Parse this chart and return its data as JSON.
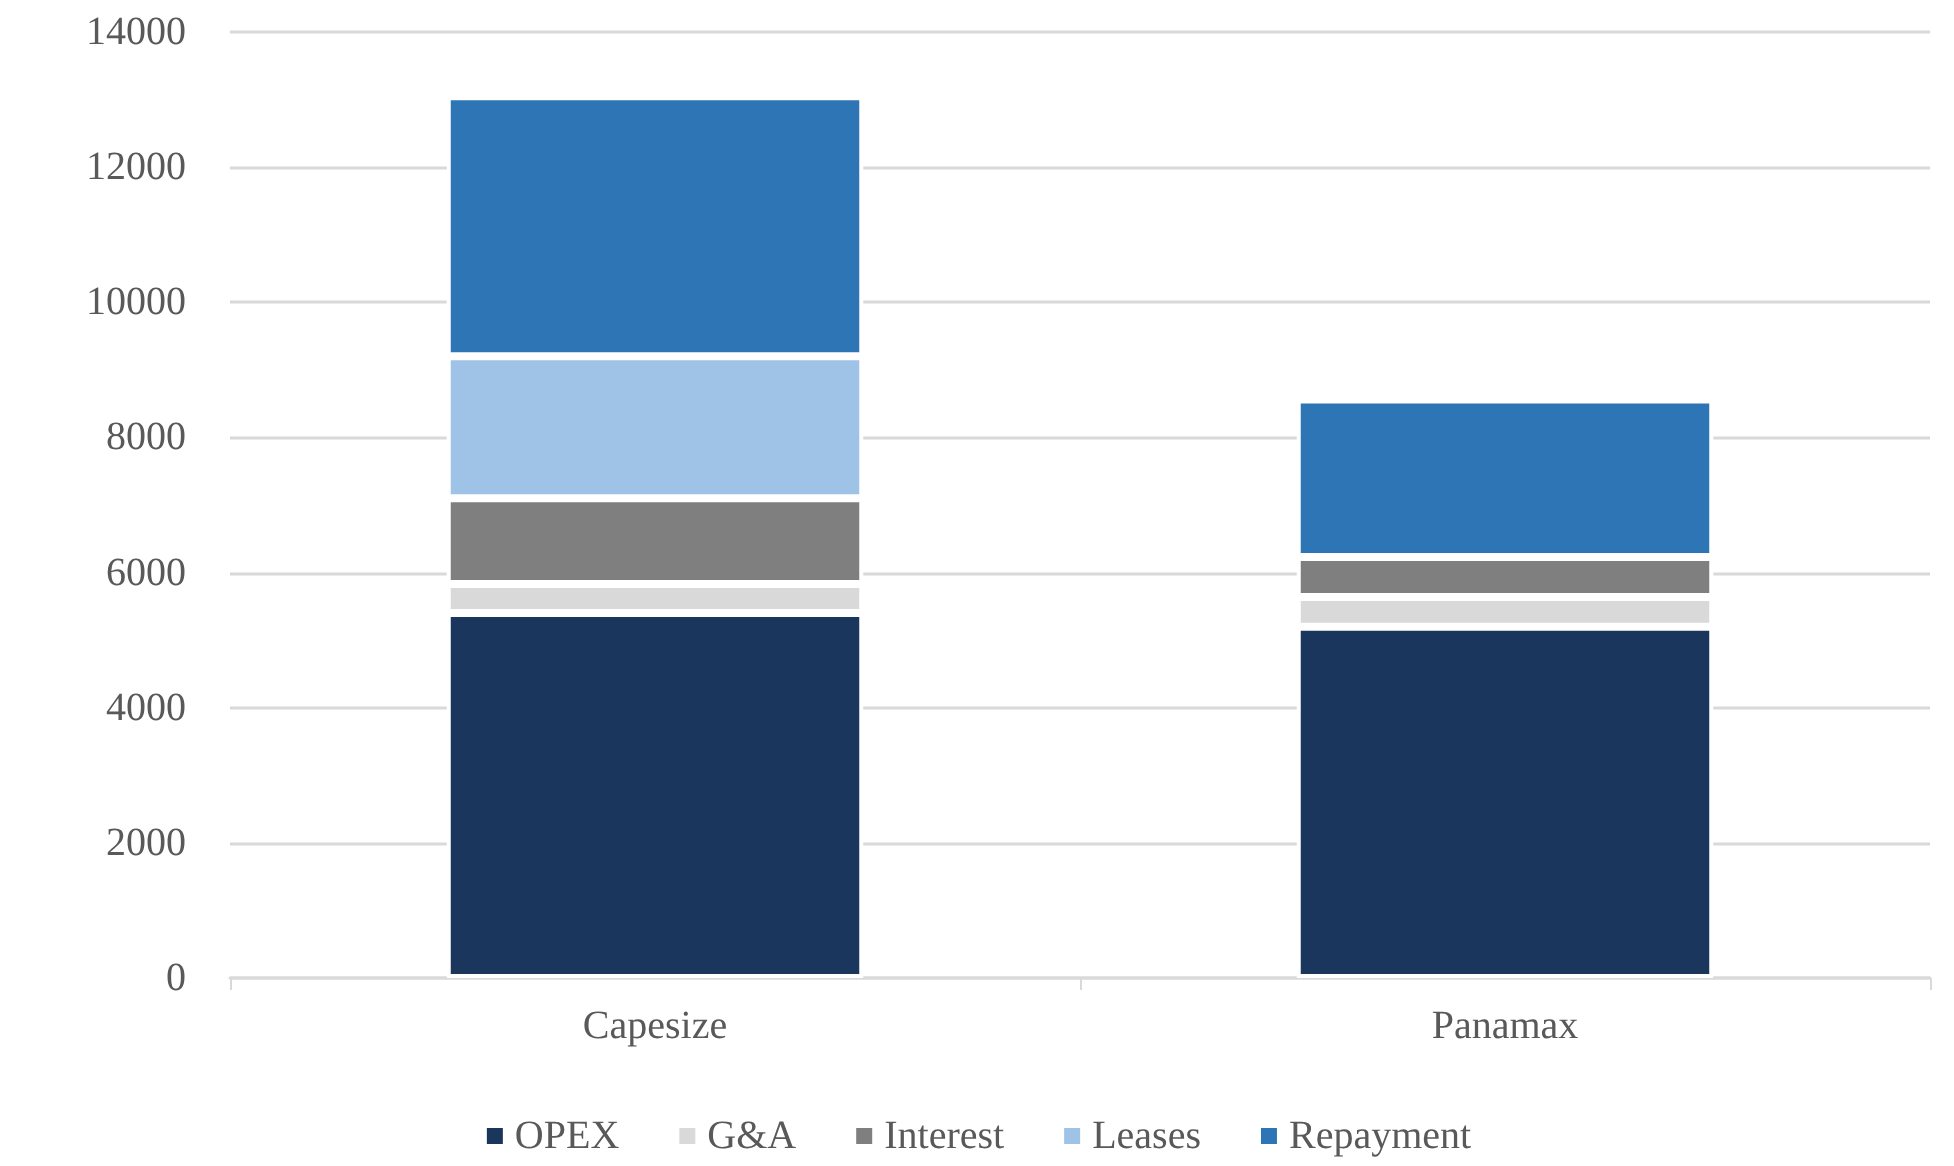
{
  "chart_data": {
    "type": "bar",
    "stacked": true,
    "categories": [
      "Capesize",
      "Panamax"
    ],
    "series": [
      {
        "name": "OPEX",
        "color": "#1a365d",
        "values": [
          5400,
          5200
        ]
      },
      {
        "name": "G&A",
        "color": "#d9d9d9",
        "values": [
          430,
          440
        ]
      },
      {
        "name": "Interest",
        "color": "#7f7f7f",
        "values": [
          1270,
          590
        ]
      },
      {
        "name": "Leases",
        "color": "#9fc3e6",
        "values": [
          2100,
          null
        ]
      },
      {
        "name": "Repayment",
        "color": "#2e75b6",
        "values": [
          3850,
          2330
        ]
      }
    ],
    "ylim": [
      0,
      14000
    ],
    "yticks": [
      0,
      2000,
      4000,
      6000,
      8000,
      10000,
      12000,
      14000
    ],
    "grid": "y",
    "legend": "bottom"
  }
}
